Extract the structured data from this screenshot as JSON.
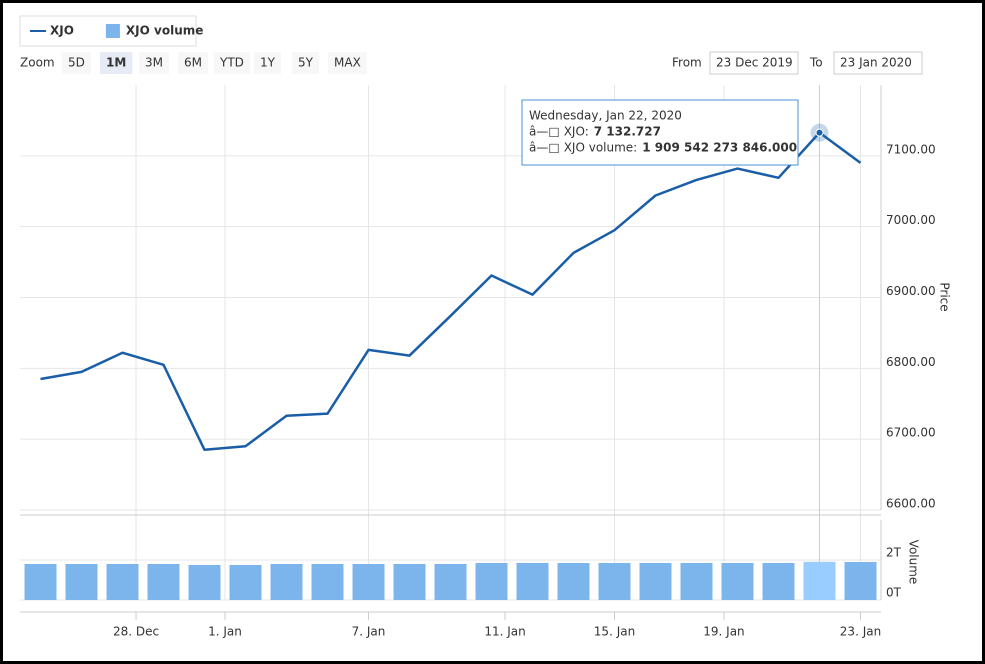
{
  "legend": {
    "items": [
      {
        "label": "XJO",
        "color": "#1a5ea8",
        "kind": "line"
      },
      {
        "label": "XJO volume",
        "color": "#7cb5ec",
        "kind": "box"
      }
    ]
  },
  "range_selector": {
    "label": "Zoom",
    "buttons": [
      "5D",
      "1M",
      "3M",
      "6M",
      "YTD",
      "1Y",
      "5Y",
      "MAX"
    ],
    "selected": 1
  },
  "date_range": {
    "from_label": "From",
    "from": "23 Dec 2019",
    "to_label": "To",
    "to": "23 Jan 2020"
  },
  "tooltip": {
    "title": "Wednesday, Jan 22, 2020",
    "rows": [
      {
        "marker": "â—□",
        "label": "XJO:"
      },
      {
        "marker": "â—□",
        "label": "XJO volume:"
      }
    ]
  },
  "chart_data": {
    "type": "line",
    "categories": [
      null,
      null,
      null,
      null,
      null,
      null,
      null,
      null,
      null,
      null,
      null,
      null,
      null,
      null,
      null,
      null,
      null,
      null,
      null,
      null,
      null
    ],
    "xlim": [
      -0.5,
      20.5
    ],
    "xticks": [
      {
        "value": 2.33,
        "label": "28. Dec"
      },
      {
        "value": 4.5,
        "label": "1. Jan"
      },
      {
        "value": 8,
        "label": "7. Jan"
      },
      {
        "value": 11.33,
        "label": "11. Jan"
      },
      {
        "value": 14,
        "label": "15. Jan"
      },
      {
        "value": 16.67,
        "label": "19. Jan"
      },
      {
        "value": 20,
        "label": "23. Jan"
      }
    ],
    "ylabel": "Price",
    "ylim": [
      6600,
      7200
    ],
    "yticks": [
      {
        "value": 6600,
        "label": "6600.00"
      },
      {
        "value": 6700,
        "label": "6700.00"
      },
      {
        "value": 6800,
        "label": "6800.00"
      },
      {
        "value": 6900,
        "label": "6900.00"
      },
      {
        "value": 7000,
        "label": "7000.00"
      },
      {
        "value": 7100,
        "label": "7100.00"
      }
    ],
    "y2label": "Volume",
    "y2lim": [
      0,
      4000000000000
    ],
    "y2ticks": [
      {
        "value": 0,
        "label": "0T"
      },
      {
        "value": 2000000000000,
        "label": "2T"
      }
    ],
    "grid": true,
    "highlight_index": 19,
    "series": [
      {
        "name": "XJO",
        "color": "#1a5ea8",
        "values": [
          6785,
          6795,
          6822,
          6805,
          6685,
          6690,
          6733,
          6736,
          6826,
          6818,
          6874,
          6931,
          6904,
          6963,
          6995,
          7044,
          7066,
          7082,
          7069,
          7132.727,
          7090
        ],
        "value_labels": [
          null,
          null,
          null,
          null,
          null,
          null,
          null,
          null,
          null,
          null,
          null,
          null,
          null,
          null,
          null,
          null,
          null,
          null,
          null,
          "7 132.727",
          null
        ]
      },
      {
        "name": "XJO volume",
        "color": "#7cb5ec",
        "highlight_color": "#99ccff",
        "axis": "y2",
        "values": [
          1800000000000,
          1800000000000,
          1800000000000,
          1800000000000,
          1750000000000,
          1750000000000,
          1800000000000,
          1800000000000,
          1800000000000,
          1800000000000,
          1800000000000,
          1850000000000,
          1850000000000,
          1850000000000,
          1850000000000,
          1850000000000,
          1850000000000,
          1850000000000,
          1850000000000,
          1909542273846,
          1900000000000
        ],
        "value_labels": [
          null,
          null,
          null,
          null,
          null,
          null,
          null,
          null,
          null,
          null,
          null,
          null,
          null,
          null,
          null,
          null,
          null,
          null,
          null,
          "1 909 542 273 846.000",
          null
        ]
      }
    ]
  }
}
